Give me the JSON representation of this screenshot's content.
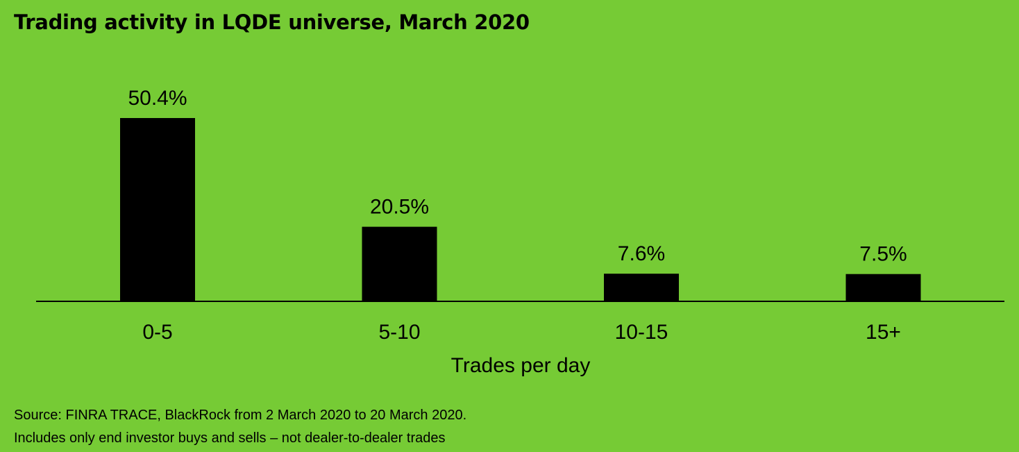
{
  "colors": {
    "background": "#76cb35",
    "bar": "#000000",
    "text": "#000000"
  },
  "chart_data": {
    "type": "bar",
    "title": "Trading activity in LQDE universe, March 2020",
    "xlabel": "Trades per day",
    "ylabel": "",
    "categories": [
      "0-5",
      "5-10",
      "10-15",
      "15+"
    ],
    "values": [
      50.4,
      20.5,
      7.6,
      7.5
    ],
    "data_labels": [
      "50.4%",
      "20.5%",
      "7.6%",
      "7.5%"
    ],
    "ylim": [
      0,
      50.4
    ],
    "grid": false,
    "y_axis_visible": false
  },
  "footnotes": {
    "source": "Source: FINRA TRACE, BlackRock from 2 March 2020 to 20 March 2020.",
    "note": "Includes only end investor buys and sells – not dealer-to-dealer trades"
  }
}
